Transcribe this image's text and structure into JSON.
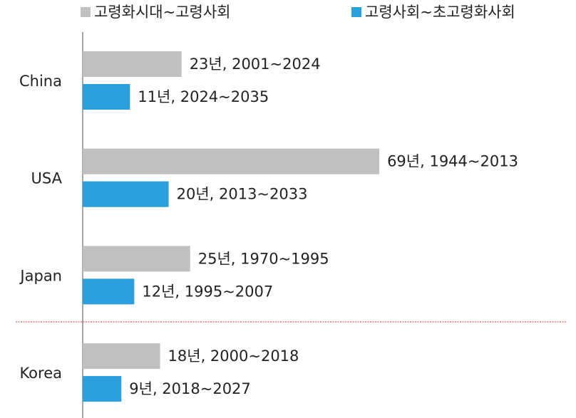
{
  "chart_data": {
    "type": "bar",
    "orientation": "horizontal",
    "categories": [
      "China",
      "USA",
      "Japan",
      "Korea"
    ],
    "series": [
      {
        "name": "고령화시대~고령사회",
        "color": "#c0c0c0",
        "values": [
          23,
          69,
          25,
          18
        ],
        "value_labels": [
          "23년, 2001~2024",
          "69년, 1944~2013",
          "25년, 1970~1995",
          "18년, 2000~2018"
        ]
      },
      {
        "name": "고령사회~초고령화사회",
        "color": "#2a9fdc",
        "values": [
          11,
          20,
          12,
          9
        ],
        "value_labels": [
          "11년, 2024~2035",
          "20년, 2013~2033",
          "12년, 1995~2007",
          "9년, 2018~2027"
        ]
      }
    ],
    "legend": "top"
  }
}
